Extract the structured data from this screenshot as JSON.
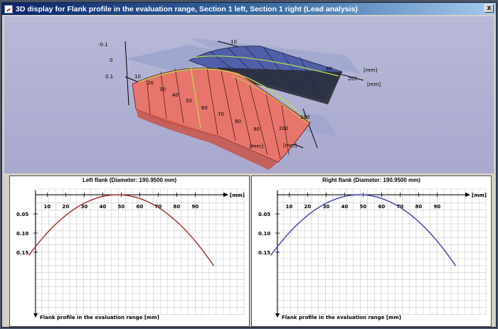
{
  "window": {
    "title": "3D display for Flank profile in the evaluation range, Section 1 left, Section 1 right (Lead analysis)",
    "close_label": "x"
  },
  "view3d": {
    "z_ticks": [
      "-0.1",
      "0",
      "0.1"
    ],
    "left_x_ticks": [
      "10",
      "20",
      "30",
      "40",
      "50",
      "60",
      "70",
      "80",
      "90"
    ],
    "right_x_ticks": [
      "10",
      "80"
    ],
    "mm_labels": [
      "[mm]",
      "[mm]",
      "[mm]",
      "[mm]"
    ],
    "depth_ticks": [
      "180",
      "200",
      "205"
    ],
    "colors": {
      "left_surface": "#e8756c",
      "right_surface": "#4f5fa8",
      "grid_line": "#b6e34a"
    }
  },
  "panels": {
    "left": {
      "title": "Left flank (Diameter: 190.9500 mm)",
      "x_ticks": [
        "10",
        "20",
        "30",
        "40",
        "50",
        "60",
        "70",
        "80",
        "90"
      ],
      "x_unit": "[mm]",
      "y_ticks": [
        "0.05",
        "0.10",
        "0.15"
      ],
      "y_label": "Flank profile in the evaluation range [mm]",
      "curve_color": "#a0302a"
    },
    "right": {
      "title": "Right flank (Diameter: 190.9500 mm)",
      "x_ticks": [
        "10",
        "20",
        "30",
        "40",
        "50",
        "60",
        "70",
        "80",
        "90"
      ],
      "x_unit": "[mm]",
      "y_ticks": [
        "0.05",
        "0.10",
        "0.15"
      ],
      "y_label": "Flank profile in the evaluation range [mm]",
      "curve_color": "#4040b0"
    }
  }
}
